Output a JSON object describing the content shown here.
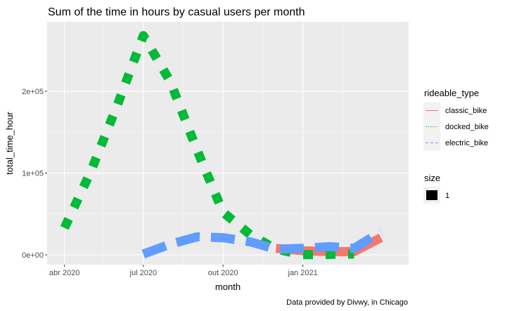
{
  "chart_data": {
    "type": "line",
    "title": "Sum of the time in hours by casual users per month",
    "xlabel": "month",
    "ylabel": "total_time_hour",
    "caption": "Data provided by Divwy, in Chicago",
    "x_ticks": [
      "2020-04-01",
      "2020-07-01",
      "2020-10-01",
      "2021-01-01"
    ],
    "x_tick_labels": [
      "abr 2020",
      "jul 2020",
      "out 2020",
      "jan 2021"
    ],
    "xlim": [
      "2020-03-12",
      "2021-05-03"
    ],
    "y_ticks": [
      0,
      100000,
      200000
    ],
    "y_tick_labels": [
      "0e+00",
      "1e+05",
      "2e+05"
    ],
    "ylim": [
      -12000,
      285000
    ],
    "grid": true,
    "legend": {
      "title": "rideable_type",
      "position": "right",
      "size_title": "size",
      "size_label": "1"
    },
    "series": [
      {
        "name": "classic_bike",
        "color": "#F8766D",
        "dash": "solid",
        "x": [
          "2020-12-01",
          "2021-01-01",
          "2021-02-01",
          "2021-03-01",
          "2021-04-01"
        ],
        "values": [
          8000,
          5000,
          4000,
          4000,
          21000
        ]
      },
      {
        "name": "docked_bike",
        "color": "#00BA38",
        "dash": "dotted",
        "x": [
          "2020-04-01",
          "2020-05-01",
          "2020-06-01",
          "2020-07-01",
          "2020-08-01",
          "2020-09-01",
          "2020-10-01",
          "2020-11-01",
          "2020-12-01",
          "2021-01-01",
          "2021-02-01",
          "2021-03-01"
        ],
        "values": [
          33000,
          101000,
          183000,
          268000,
          212000,
          128000,
          52000,
          25000,
          7000,
          200,
          500,
          1000
        ]
      },
      {
        "name": "electric_bike",
        "color": "#619CFF",
        "dash": "dashed",
        "x": [
          "2020-07-01",
          "2020-08-01",
          "2020-09-01",
          "2020-10-01",
          "2020-11-01",
          "2020-12-01",
          "2021-01-01",
          "2021-02-01",
          "2021-03-01",
          "2021-04-01"
        ],
        "values": [
          1000,
          13000,
          22000,
          21000,
          16000,
          7000,
          8000,
          10000,
          8000,
          28000
        ]
      }
    ]
  }
}
